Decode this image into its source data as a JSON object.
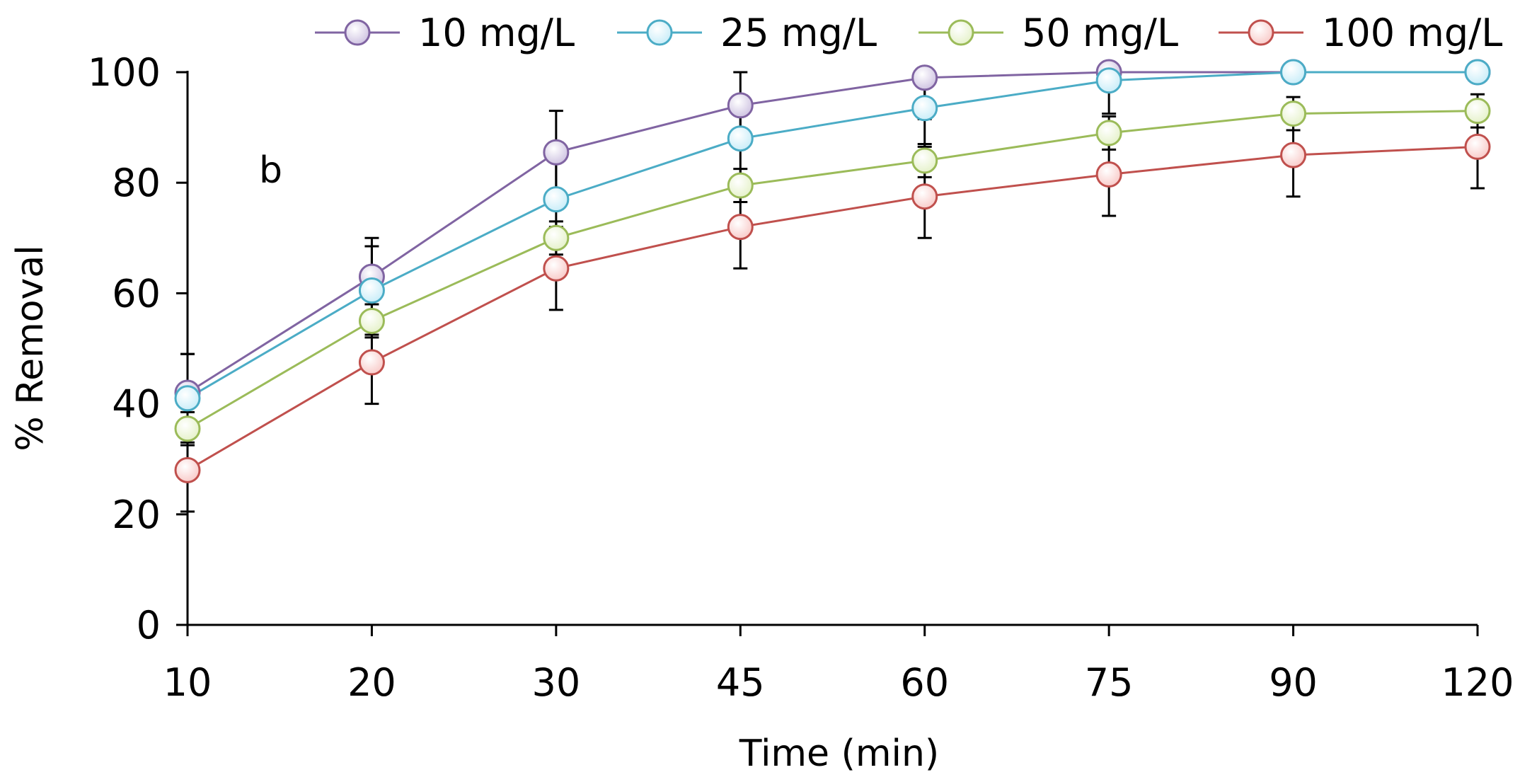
{
  "chart_data": {
    "type": "line",
    "categories": [
      "10",
      "20",
      "30",
      "45",
      "60",
      "75",
      "90",
      "120"
    ],
    "xlabel": "Time (min)",
    "ylabel": "% Removal",
    "ylim": [
      0,
      100
    ],
    "yticks": [
      0,
      20,
      40,
      60,
      80,
      100
    ],
    "panel_label": "b",
    "legend_position": "top",
    "error_bars": true,
    "series": [
      {
        "name": "10 mg/L",
        "color": "#8064a2",
        "fill": "#ccc0e0",
        "values": [
          42,
          63,
          85.5,
          94,
          99,
          100,
          100,
          100
        ],
        "errors": [
          7,
          7,
          7.5,
          6,
          7.5,
          0,
          0,
          0
        ]
      },
      {
        "name": "25 mg/L",
        "color": "#4bacc6",
        "fill": "#c6ecf8",
        "values": [
          41,
          60.5,
          77,
          88,
          93.5,
          98.5,
          100,
          100
        ],
        "errors": [
          8,
          8,
          8,
          7,
          7,
          6,
          0,
          0
        ]
      },
      {
        "name": "50 mg/L",
        "color": "#9bbb59",
        "fill": "#e4f1c7",
        "values": [
          35.5,
          55,
          70,
          79.5,
          84,
          89,
          92.5,
          93
        ],
        "errors": [
          3,
          3,
          3,
          3,
          3,
          3,
          3,
          3
        ]
      },
      {
        "name": "100 mg/L",
        "color": "#c0504d",
        "fill": "#f8c8c6",
        "values": [
          28,
          47.5,
          64.5,
          72,
          77.5,
          81.5,
          85,
          86.5
        ],
        "errors": [
          7.5,
          7.5,
          7.5,
          7.5,
          7.5,
          7.5,
          7.5,
          7.5
        ]
      }
    ]
  }
}
